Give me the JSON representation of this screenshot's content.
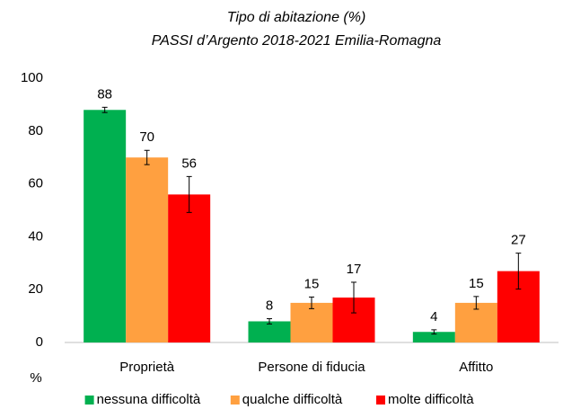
{
  "chart_data": {
    "type": "bar",
    "title": "Tipo di abitazione (%)",
    "subtitle": "PASSI d’Argento 2018-2021  Emilia-Romagna",
    "y_axis_label": "%",
    "categories": [
      "Proprietà",
      "Persone di fiducia",
      "Affitto"
    ],
    "series": [
      {
        "name": "nessuna difficoltà",
        "color": "#00b050",
        "values": [
          88,
          8,
          4
        ],
        "errors": [
          1,
          1,
          0.8
        ]
      },
      {
        "name": "qualche difficoltà",
        "color": "#ffa040",
        "values": [
          70,
          15,
          15
        ],
        "errors": [
          2.7,
          2.2,
          2.4
        ]
      },
      {
        "name": "molte difficoltà",
        "color": "#ff0000",
        "values": [
          56,
          17,
          27
        ],
        "errors": [
          6.8,
          5.8,
          6.8
        ]
      }
    ],
    "ylim": [
      0,
      100
    ],
    "yticks": [
      0,
      20,
      40,
      60,
      80,
      100
    ],
    "grid": false,
    "legend": "bottom"
  }
}
